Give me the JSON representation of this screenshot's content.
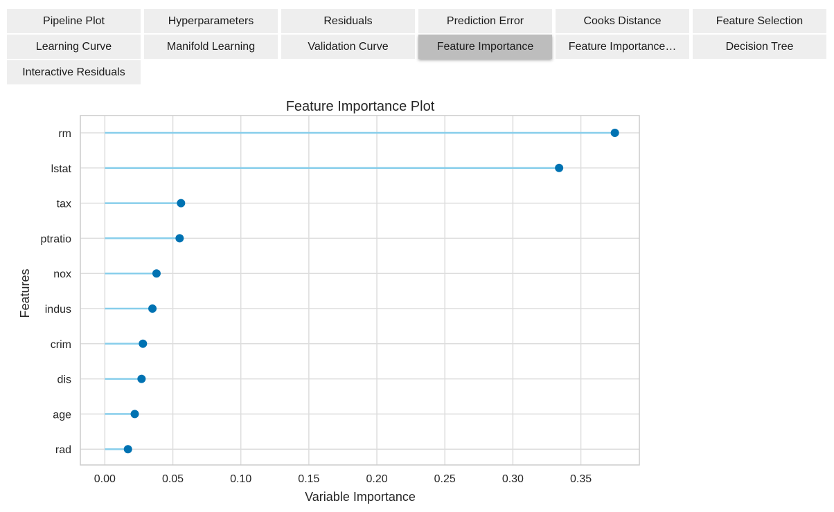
{
  "tabs": [
    {
      "label": "Pipeline Plot",
      "active": false
    },
    {
      "label": "Hyperparameters",
      "active": false
    },
    {
      "label": "Residuals",
      "active": false
    },
    {
      "label": "Prediction Error",
      "active": false
    },
    {
      "label": "Cooks Distance",
      "active": false
    },
    {
      "label": "Feature Selection",
      "active": false
    },
    {
      "label": "Learning Curve",
      "active": false
    },
    {
      "label": "Manifold Learning",
      "active": false
    },
    {
      "label": "Validation Curve",
      "active": false
    },
    {
      "label": "Feature Importance",
      "active": true
    },
    {
      "label": "Feature Importance…",
      "active": false
    },
    {
      "label": "Decision Tree",
      "active": false
    },
    {
      "label": "Interactive Residuals",
      "active": false
    }
  ],
  "chart_data": {
    "type": "scatter",
    "style": "lollipop",
    "title": "Feature Importance Plot",
    "xlabel": "Variable Importance",
    "ylabel": "Features",
    "categories": [
      "rm",
      "lstat",
      "tax",
      "ptratio",
      "nox",
      "indus",
      "crim",
      "dis",
      "age",
      "rad"
    ],
    "values": [
      0.375,
      0.334,
      0.056,
      0.055,
      0.038,
      0.035,
      0.028,
      0.027,
      0.022,
      0.017
    ],
    "xlim": [
      -0.018,
      0.393
    ],
    "xticks": [
      "0.00",
      "0.05",
      "0.10",
      "0.15",
      "0.20",
      "0.25",
      "0.30",
      "0.35"
    ],
    "grid": true,
    "colors": {
      "stem": "#87ceeb",
      "marker": "#0072b2",
      "grid": "#dddddd",
      "frame": "#cccccc"
    }
  }
}
